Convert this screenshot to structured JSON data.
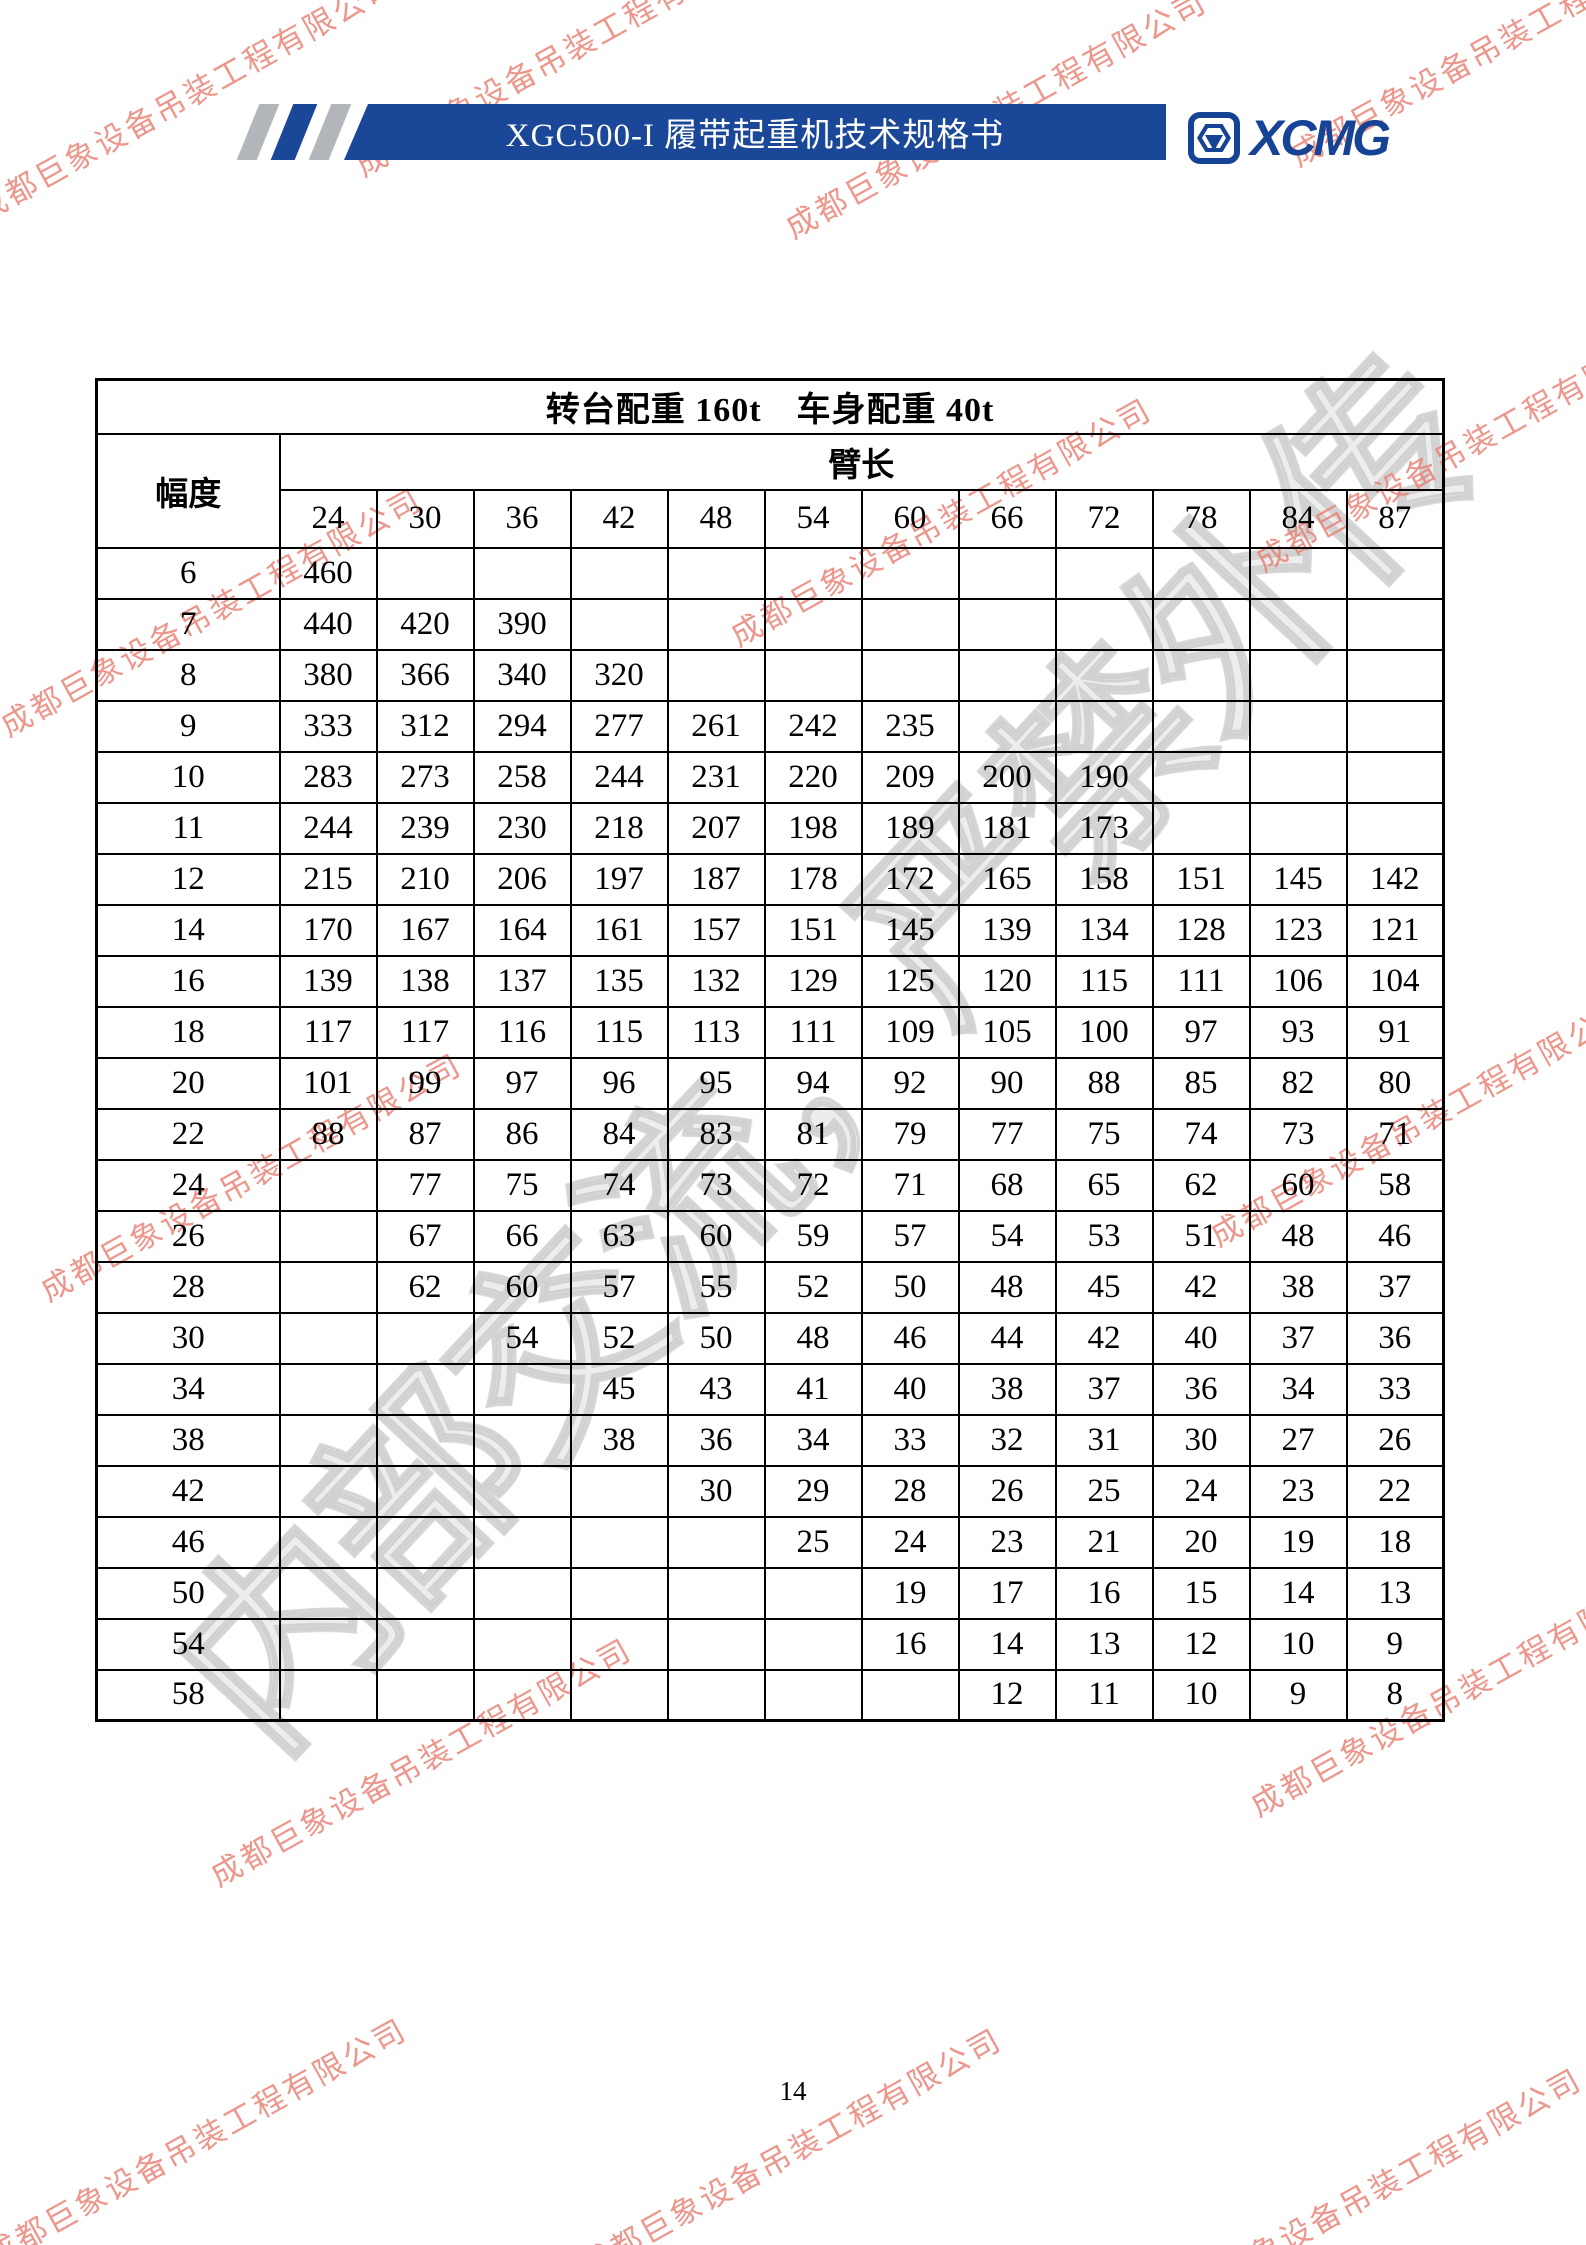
{
  "header": {
    "doc_title": "XGC500-I 履带起重机技术规格书",
    "logo_text": "XCMG"
  },
  "table": {
    "title": "转台配重 160t　车身配重 40t",
    "radius_label": "幅度",
    "boom_label": "臂长",
    "boom_lengths": [
      "24",
      "30",
      "36",
      "42",
      "48",
      "54",
      "60",
      "66",
      "72",
      "78",
      "84",
      "87"
    ],
    "rows": [
      {
        "radius": "6",
        "values": [
          "460",
          "",
          "",
          "",
          "",
          "",
          "",
          "",
          "",
          "",
          "",
          ""
        ]
      },
      {
        "radius": "7",
        "values": [
          "440",
          "420",
          "390",
          "",
          "",
          "",
          "",
          "",
          "",
          "",
          "",
          ""
        ]
      },
      {
        "radius": "8",
        "values": [
          "380",
          "366",
          "340",
          "320",
          "",
          "",
          "",
          "",
          "",
          "",
          "",
          ""
        ]
      },
      {
        "radius": "9",
        "values": [
          "333",
          "312",
          "294",
          "277",
          "261",
          "242",
          "235",
          "",
          "",
          "",
          "",
          ""
        ]
      },
      {
        "radius": "10",
        "values": [
          "283",
          "273",
          "258",
          "244",
          "231",
          "220",
          "209",
          "200",
          "190",
          "",
          "",
          ""
        ]
      },
      {
        "radius": "11",
        "values": [
          "244",
          "239",
          "230",
          "218",
          "207",
          "198",
          "189",
          "181",
          "173",
          "",
          "",
          ""
        ]
      },
      {
        "radius": "12",
        "values": [
          "215",
          "210",
          "206",
          "197",
          "187",
          "178",
          "172",
          "165",
          "158",
          "151",
          "145",
          "142"
        ]
      },
      {
        "radius": "14",
        "values": [
          "170",
          "167",
          "164",
          "161",
          "157",
          "151",
          "145",
          "139",
          "134",
          "128",
          "123",
          "121"
        ]
      },
      {
        "radius": "16",
        "values": [
          "139",
          "138",
          "137",
          "135",
          "132",
          "129",
          "125",
          "120",
          "115",
          "111",
          "106",
          "104"
        ]
      },
      {
        "radius": "18",
        "values": [
          "117",
          "117",
          "116",
          "115",
          "113",
          "111",
          "109",
          "105",
          "100",
          "97",
          "93",
          "91"
        ]
      },
      {
        "radius": "20",
        "values": [
          "101",
          "99",
          "97",
          "96",
          "95",
          "94",
          "92",
          "90",
          "88",
          "85",
          "82",
          "80"
        ]
      },
      {
        "radius": "22",
        "values": [
          "88",
          "87",
          "86",
          "84",
          "83",
          "81",
          "79",
          "77",
          "75",
          "74",
          "73",
          "71"
        ]
      },
      {
        "radius": "24",
        "values": [
          "",
          "77",
          "75",
          "74",
          "73",
          "72",
          "71",
          "68",
          "65",
          "62",
          "60",
          "58"
        ]
      },
      {
        "radius": "26",
        "values": [
          "",
          "67",
          "66",
          "63",
          "60",
          "59",
          "57",
          "54",
          "53",
          "51",
          "48",
          "46"
        ]
      },
      {
        "radius": "28",
        "values": [
          "",
          "62",
          "60",
          "57",
          "55",
          "52",
          "50",
          "48",
          "45",
          "42",
          "38",
          "37"
        ]
      },
      {
        "radius": "30",
        "values": [
          "",
          "",
          "54",
          "52",
          "50",
          "48",
          "46",
          "44",
          "42",
          "40",
          "37",
          "36"
        ]
      },
      {
        "radius": "34",
        "values": [
          "",
          "",
          "",
          "45",
          "43",
          "41",
          "40",
          "38",
          "37",
          "36",
          "34",
          "33"
        ]
      },
      {
        "radius": "38",
        "values": [
          "",
          "",
          "",
          "38",
          "36",
          "34",
          "33",
          "32",
          "31",
          "30",
          "27",
          "26"
        ]
      },
      {
        "radius": "42",
        "values": [
          "",
          "",
          "",
          "",
          "30",
          "29",
          "28",
          "26",
          "25",
          "24",
          "23",
          "22"
        ]
      },
      {
        "radius": "46",
        "values": [
          "",
          "",
          "",
          "",
          "",
          "25",
          "24",
          "23",
          "21",
          "20",
          "19",
          "18"
        ]
      },
      {
        "radius": "50",
        "values": [
          "",
          "",
          "",
          "",
          "",
          "",
          "19",
          "17",
          "16",
          "15",
          "14",
          "13"
        ]
      },
      {
        "radius": "54",
        "values": [
          "",
          "",
          "",
          "",
          "",
          "",
          "16",
          "14",
          "13",
          "12",
          "10",
          "9"
        ]
      },
      {
        "radius": "58",
        "values": [
          "",
          "",
          "",
          "",
          "",
          "",
          "",
          "12",
          "11",
          "10",
          "9",
          "8"
        ]
      }
    ]
  },
  "watermarks": {
    "company": "成都巨象设备吊装工程有限公司",
    "confidential": "内部交流，严禁外传"
  },
  "footer": {
    "page_number": "14"
  }
}
